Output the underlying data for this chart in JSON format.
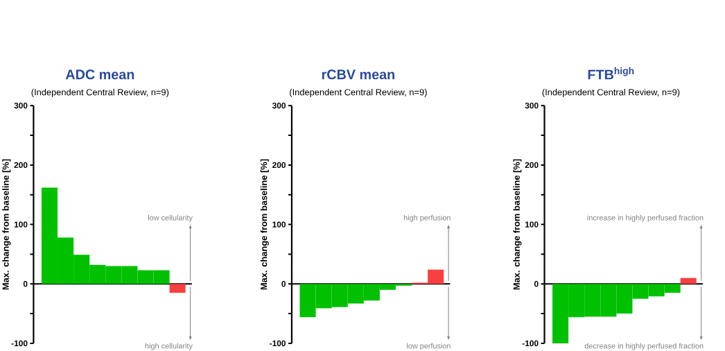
{
  "chart_data": [
    {
      "type": "bar",
      "title": "ADC mean",
      "subtitle": "(Independent Central Review, n=9)",
      "ylabel": "Max. change from baseline [%]",
      "categories": [
        null,
        null,
        null,
        null,
        null,
        null,
        null,
        null,
        null
      ],
      "values": [
        162,
        78,
        49,
        32,
        30,
        30,
        23,
        23,
        -15
      ],
      "colors": [
        "#00c000",
        "#00c000",
        "#00c000",
        "#00c000",
        "#00c000",
        "#00c000",
        "#00c000",
        "#00c000",
        "#f94040"
      ],
      "ylim": [
        -100,
        300
      ],
      "yticks": [
        -100,
        {
          "value": -50,
          "label": null
        },
        0,
        {
          "value": 50,
          "label": null
        },
        100,
        {
          "value": 150,
          "label": null
        },
        200,
        {
          "value": 250,
          "label": null
        },
        300
      ],
      "tick_labels": "y",
      "annotations": [
        "low cellularity",
        "high cellularity"
      ]
    },
    {
      "type": "bar",
      "title": "rCBV mean",
      "subtitle": "(Independent Central Review, n=9)",
      "ylabel": "Max. change from baseline [%]",
      "categories": [
        null,
        null,
        null,
        null,
        null,
        null,
        null,
        null,
        null
      ],
      "values": [
        -56,
        -41,
        -39,
        -33,
        -28,
        -10,
        -3,
        2,
        24
      ],
      "colors": [
        "#00c000",
        "#00c000",
        "#00c000",
        "#00c000",
        "#00c000",
        "#00c000",
        "#00c000",
        "#f94040",
        "#f94040"
      ],
      "ylim": [
        -100,
        300
      ],
      "yticks": [
        -100,
        {
          "value": -50,
          "label": null
        },
        0,
        {
          "value": 50,
          "label": null
        },
        100,
        {
          "value": 150,
          "label": null
        },
        200,
        {
          "value": 250,
          "label": null
        },
        300
      ],
      "tick_labels": "y",
      "annotations": [
        "high perfusion",
        "low perfusion"
      ]
    },
    {
      "type": "bar",
      "title": "FTB$^{high}$",
      "subtitle": "(Independent Central Review, n=9)",
      "ylabel": "Max. change from baseline [%]",
      "categories": [
        null,
        null,
        null,
        null,
        null,
        null,
        null,
        null,
        null
      ],
      "values": [
        -100,
        -56,
        -55,
        -55,
        -50,
        -25,
        -21,
        -15,
        10
      ],
      "colors": [
        "#00c000",
        "#00c000",
        "#00c000",
        "#00c000",
        "#00c000",
        "#00c000",
        "#00c000",
        "#00c000",
        "#f94040"
      ],
      "ylim": [
        -100,
        300
      ],
      "yticks": [
        -100,
        {
          "value": -50,
          "label": null
        },
        0,
        {
          "value": 50,
          "label": null
        },
        100,
        {
          "value": 150,
          "label": null
        },
        200,
        {
          "value": 250,
          "label": null
        },
        300
      ],
      "tick_labels": "y",
      "annotations": [
        "increase in highly perfused fraction",
        "decrease in highly perfused fraction"
      ]
    }
  ]
}
